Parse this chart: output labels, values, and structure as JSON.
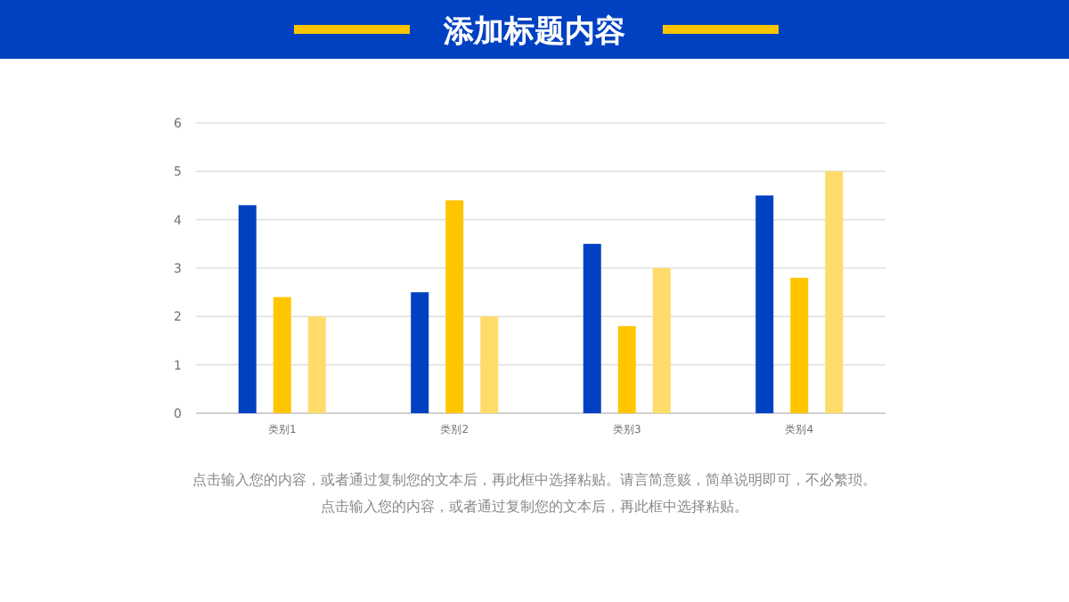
{
  "chart_data": {
    "type": "bar",
    "title": "添加标题内容",
    "categories": [
      "类别1",
      "类别2",
      "类别3",
      "类别4"
    ],
    "series": [
      {
        "color": "#0041c2",
        "values": [
          4.3,
          2.5,
          3.5,
          4.5
        ]
      },
      {
        "color": "#ffc600",
        "values": [
          2.4,
          4.4,
          1.8,
          2.8
        ]
      },
      {
        "color": "#ffdc6a",
        "values": [
          2,
          2,
          3,
          5
        ]
      }
    ],
    "ylim": [
      0,
      6
    ],
    "yticks": [
      0,
      1,
      2,
      3,
      4,
      5,
      6
    ],
    "grid": "y",
    "annotations": [
      "点击输入您的内容，或者通过复制您的文本后，再此框中选择粘贴。请言简意赅，简单说明即可，不必繁琐。",
      "点击输入您的内容，或者通过复制您的文本后，再此框中选择粘贴。"
    ]
  }
}
